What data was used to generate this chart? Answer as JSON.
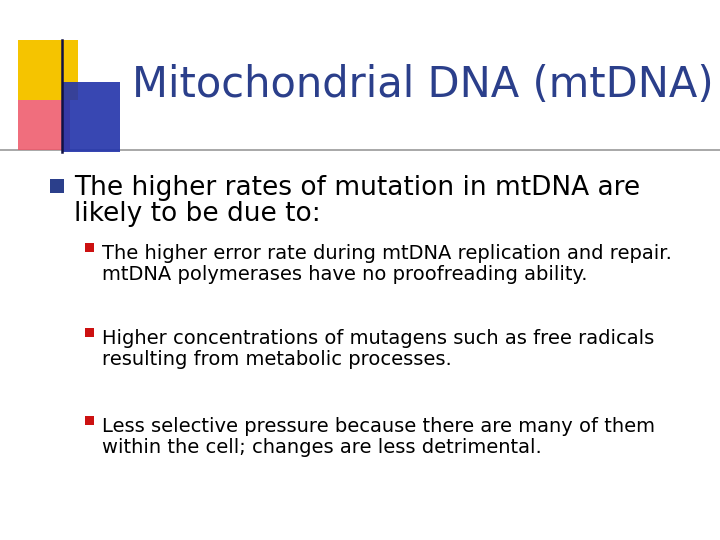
{
  "title": "Mitochondrial DNA (mtDNA)",
  "title_color": "#2B3F8B",
  "background_color": "#FFFFFF",
  "bullet1_text_line1": "The higher rates of mutation in mtDNA are",
  "bullet1_text_line2": "likely to be due to:",
  "bullet1_color": "#000000",
  "bullet1_marker_color": "#2B3F8B",
  "sub_bullets": [
    [
      "The higher error rate during mtDNA replication and repair.",
      "mtDNA polymerases have no proofreading ability."
    ],
    [
      "Higher concentrations of mutagens such as free radicals",
      "resulting from metabolic processes."
    ],
    [
      "Less selective pressure because there are many of them",
      "within the cell; changes are less detrimental."
    ]
  ],
  "sub_bullet_color": "#000000",
  "sub_bullet_marker_color": "#CC1111",
  "title_fontsize": 30,
  "bullet1_fontsize": 19,
  "sub_bullet_fontsize": 14
}
